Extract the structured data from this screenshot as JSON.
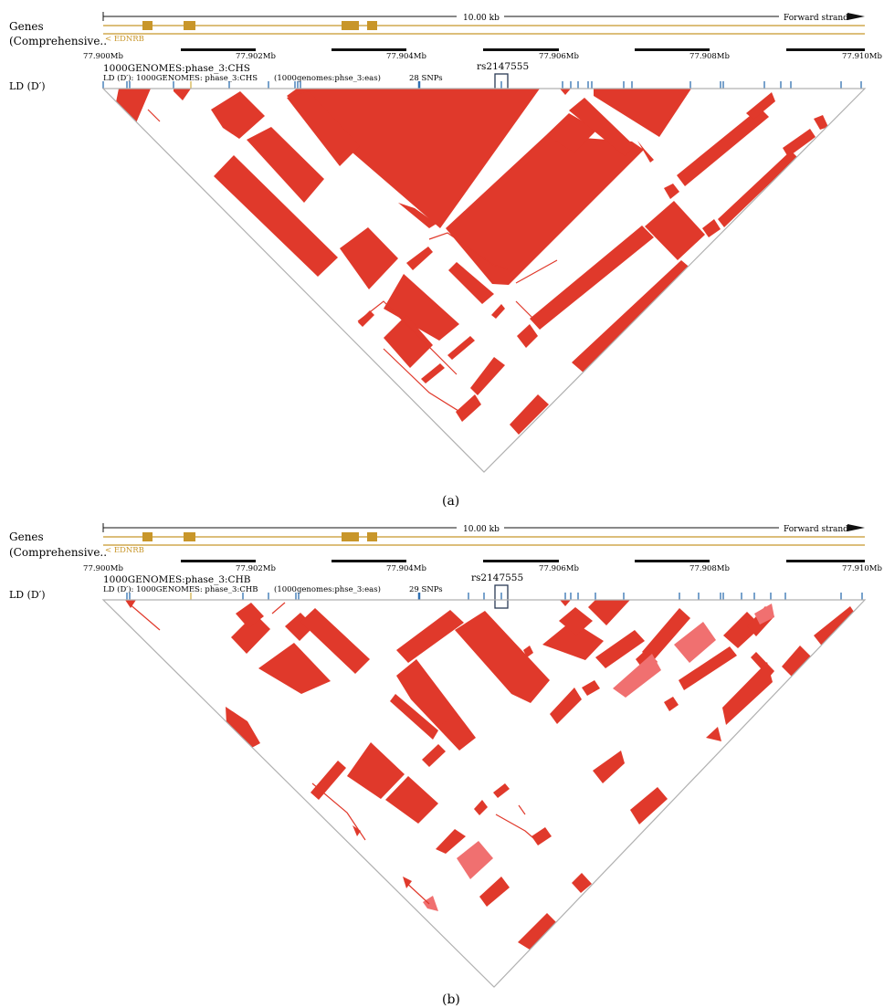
{
  "panels": [
    {
      "id": "a",
      "caption": "(a)",
      "gene_track": {
        "label_line1": "Genes",
        "label_line2": "(Comprehensive..",
        "scale_label": "10.00 kb",
        "strand_label": "Forward strand",
        "gene_name": "< EDNRB"
      },
      "ruler": [
        "77.900Mb",
        "77.902Mb",
        "77.904Mb",
        "77.906Mb",
        "77.908Mb",
        "77.910Mb"
      ],
      "ld_track": {
        "side_label": "LD (D′)",
        "population": "1000GENOMES:phase_3:CHS",
        "subtitle": "LD (D′): 1000GENOMES: phase_3:CHS",
        "superpop": "(1000genomes:phse_3:eas)",
        "snp_count": "28 SNPs",
        "highlight_snp": "rs2147555"
      }
    },
    {
      "id": "b",
      "caption": "(b)",
      "gene_track": {
        "label_line1": "Genes",
        "label_line2": "(Comprehensive..",
        "scale_label": "10.00 kb",
        "strand_label": "Forward strand",
        "gene_name": "< EDNRB"
      },
      "ruler": [
        "77.900Mb",
        "77.902Mb",
        "77.904Mb",
        "77.906Mb",
        "77.908Mb",
        "77.910Mb"
      ],
      "ld_track": {
        "side_label": "LD (D′)",
        "population": "1000GENOMES:phase_3:CHB",
        "subtitle": "LD (D′): 1000GENOMES: phase_3:CHB",
        "superpop": "(1000genomes:phse_3:eas)",
        "snp_count": "29 SNPs",
        "highlight_snp": "rs2147555"
      }
    }
  ],
  "colors": {
    "ld_strong": "#e0392b",
    "ld_medium": "#f07070",
    "gene": "#c8962a",
    "snp_tick": "#2f6fb0",
    "outline": "#b0b0b0"
  }
}
